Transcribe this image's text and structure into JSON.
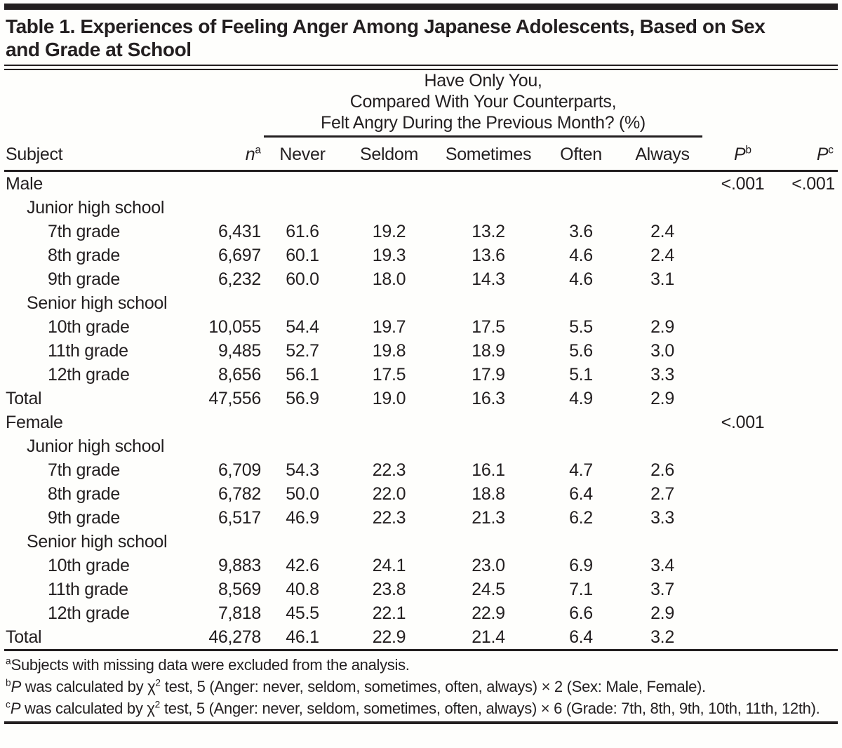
{
  "title": {
    "lines": [
      "Table 1. Experiences of Feeling Anger Among Japanese Adolescents, Based on Sex",
      "and Grade at School"
    ]
  },
  "table": {
    "span_header_lines": [
      "Have Only You,",
      "Compared With Your Counterparts,",
      "Felt Angry During the Previous Month? (%)"
    ],
    "columns": {
      "subject": "Subject",
      "n_label": "n",
      "n_sup": "a",
      "never": "Never",
      "seldom": "Seldom",
      "sometimes": "Sometimes",
      "often": "Often",
      "always": "Always",
      "p_label": "P",
      "pb_sup": "b",
      "pc_sup": "c"
    },
    "rows": [
      {
        "label": "Male",
        "indent": 0,
        "n": "",
        "never": "",
        "seldom": "",
        "sometimes": "",
        "often": "",
        "always": "",
        "pb": "<.001",
        "pc": "<.001"
      },
      {
        "label": "Junior high school",
        "indent": 1,
        "n": "",
        "never": "",
        "seldom": "",
        "sometimes": "",
        "often": "",
        "always": "",
        "pb": "",
        "pc": ""
      },
      {
        "label": "7th grade",
        "indent": 2,
        "n": "6,431",
        "never": "61.6",
        "seldom": "19.2",
        "sometimes": "13.2",
        "often": "3.6",
        "always": "2.4",
        "pb": "",
        "pc": ""
      },
      {
        "label": "8th grade",
        "indent": 2,
        "n": "6,697",
        "never": "60.1",
        "seldom": "19.3",
        "sometimes": "13.6",
        "often": "4.6",
        "always": "2.4",
        "pb": "",
        "pc": ""
      },
      {
        "label": "9th grade",
        "indent": 2,
        "n": "6,232",
        "never": "60.0",
        "seldom": "18.0",
        "sometimes": "14.3",
        "often": "4.6",
        "always": "3.1",
        "pb": "",
        "pc": ""
      },
      {
        "label": "Senior high school",
        "indent": 1,
        "n": "",
        "never": "",
        "seldom": "",
        "sometimes": "",
        "often": "",
        "always": "",
        "pb": "",
        "pc": ""
      },
      {
        "label": "10th grade",
        "indent": 2,
        "n": "10,055",
        "never": "54.4",
        "seldom": "19.7",
        "sometimes": "17.5",
        "often": "5.5",
        "always": "2.9",
        "pb": "",
        "pc": ""
      },
      {
        "label": "11th grade",
        "indent": 2,
        "n": "9,485",
        "never": "52.7",
        "seldom": "19.8",
        "sometimes": "18.9",
        "often": "5.6",
        "always": "3.0",
        "pb": "",
        "pc": ""
      },
      {
        "label": "12th grade",
        "indent": 2,
        "n": "8,656",
        "never": "56.1",
        "seldom": "17.5",
        "sometimes": "17.9",
        "often": "5.1",
        "always": "3.3",
        "pb": "",
        "pc": ""
      },
      {
        "label": "Total",
        "indent": 0,
        "n": "47,556",
        "never": "56.9",
        "seldom": "19.0",
        "sometimes": "16.3",
        "often": "4.9",
        "always": "2.9",
        "pb": "",
        "pc": ""
      },
      {
        "label": "Female",
        "indent": 0,
        "n": "",
        "never": "",
        "seldom": "",
        "sometimes": "",
        "often": "",
        "always": "",
        "pb": "<.001",
        "pc": ""
      },
      {
        "label": "Junior high school",
        "indent": 1,
        "n": "",
        "never": "",
        "seldom": "",
        "sometimes": "",
        "often": "",
        "always": "",
        "pb": "",
        "pc": ""
      },
      {
        "label": "7th grade",
        "indent": 2,
        "n": "6,709",
        "never": "54.3",
        "seldom": "22.3",
        "sometimes": "16.1",
        "often": "4.7",
        "always": "2.6",
        "pb": "",
        "pc": ""
      },
      {
        "label": "8th grade",
        "indent": 2,
        "n": "6,782",
        "never": "50.0",
        "seldom": "22.0",
        "sometimes": "18.8",
        "often": "6.4",
        "always": "2.7",
        "pb": "",
        "pc": ""
      },
      {
        "label": "9th grade",
        "indent": 2,
        "n": "6,517",
        "never": "46.9",
        "seldom": "22.3",
        "sometimes": "21.3",
        "often": "6.2",
        "always": "3.3",
        "pb": "",
        "pc": ""
      },
      {
        "label": "Senior high school",
        "indent": 1,
        "n": "",
        "never": "",
        "seldom": "",
        "sometimes": "",
        "often": "",
        "always": "",
        "pb": "",
        "pc": ""
      },
      {
        "label": "10th grade",
        "indent": 2,
        "n": "9,883",
        "never": "42.6",
        "seldom": "24.1",
        "sometimes": "23.0",
        "often": "6.9",
        "always": "3.4",
        "pb": "",
        "pc": ""
      },
      {
        "label": "11th grade",
        "indent": 2,
        "n": "8,569",
        "never": "40.8",
        "seldom": "23.8",
        "sometimes": "24.5",
        "often": "7.1",
        "always": "3.7",
        "pb": "",
        "pc": ""
      },
      {
        "label": "12th grade",
        "indent": 2,
        "n": "7,818",
        "never": "45.5",
        "seldom": "22.1",
        "sometimes": "22.9",
        "often": "6.6",
        "always": "2.9",
        "pb": "",
        "pc": ""
      },
      {
        "label": "Total",
        "indent": 0,
        "n": "46,278",
        "never": "46.1",
        "seldom": "22.9",
        "sometimes": "21.4",
        "often": "6.4",
        "always": "3.2",
        "pb": "",
        "pc": ""
      }
    ]
  },
  "footnotes": [
    {
      "parts": [
        {
          "s": "sup",
          "text": "a"
        },
        {
          "s": "t",
          "text": "Subjects with missing data were excluded from the analysis."
        }
      ]
    },
    {
      "parts": [
        {
          "s": "sup",
          "text": "b"
        },
        {
          "s": "i",
          "text": "P"
        },
        {
          "s": "t",
          "text": " was calculated by χ"
        },
        {
          "s": "sup",
          "text": "2"
        },
        {
          "s": "t",
          "text": " test, 5 (Anger: never, seldom, sometimes, often, always) × 2 (Sex: Male, Female)."
        }
      ]
    },
    {
      "parts": [
        {
          "s": "sup",
          "text": "c"
        },
        {
          "s": "i",
          "text": "P"
        },
        {
          "s": "t",
          "text": " was calculated by χ"
        },
        {
          "s": "sup",
          "text": "2"
        },
        {
          "s": "t",
          "text": " test, 5 (Anger: never, seldom, sometimes, often, always) × 6 (Grade: 7th, 8th, 9th, 10th, 11th, 12th)."
        }
      ]
    }
  ],
  "colors": {
    "text": "#231f20",
    "rule": "#231f20",
    "background": "#fefefc"
  }
}
